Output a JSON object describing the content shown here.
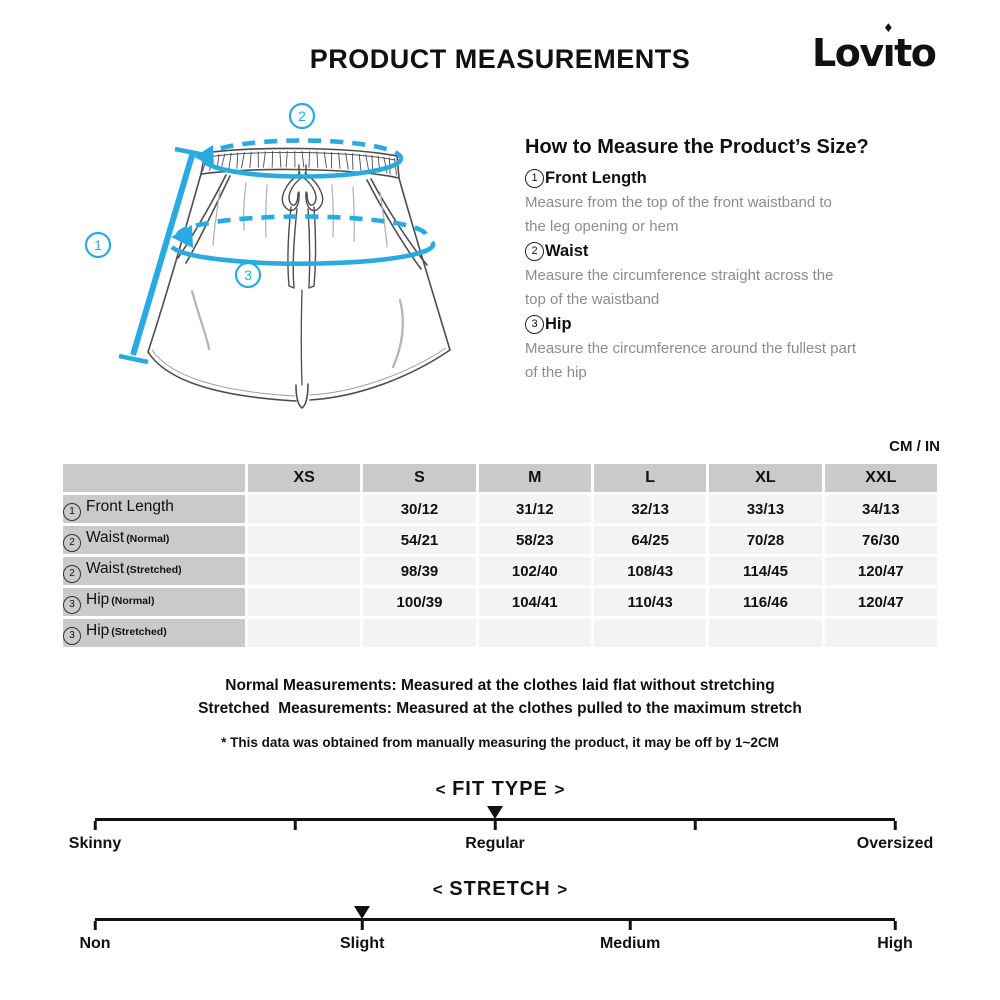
{
  "header": {
    "title": "PRODUCT MEASUREMENTS"
  },
  "brand": {
    "name": "Lovito",
    "pre": "Lov",
    "i_base": "ı",
    "i_dot": "♦",
    "post": "to"
  },
  "diagram": {
    "annotations": {
      "a1": "1",
      "a2": "2",
      "a3": "3"
    }
  },
  "howto": {
    "heading": "How to Measure the Product’s Size?",
    "items": [
      {
        "num": "1",
        "label": "Front Length",
        "desc": "Measure from the top of the front waistband to\nthe leg opening or hem"
      },
      {
        "num": "2",
        "label": "Waist",
        "desc": "Measure the circumference straight across the\ntop of the waistband"
      },
      {
        "num": "3",
        "label": "Hip",
        "desc": "Measure the circumference around the fullest part\nof the hip"
      }
    ]
  },
  "units_label": "CM / IN",
  "table": {
    "columns": [
      "XS",
      "S",
      "M",
      "L",
      "XL",
      "XXL"
    ],
    "rows": [
      {
        "num": "1",
        "label": "Front Length",
        "sub": "",
        "values": [
          "",
          "30/12",
          "31/12",
          "32/13",
          "33/13",
          "34/13"
        ]
      },
      {
        "num": "2",
        "label": "Waist",
        "sub": "(Normal)",
        "values": [
          "",
          "54/21",
          "58/23",
          "64/25",
          "70/28",
          "76/30"
        ]
      },
      {
        "num": "2",
        "label": "Waist",
        "sub": "(Stretched)",
        "values": [
          "",
          "98/39",
          "102/40",
          "108/43",
          "114/45",
          "120/47"
        ]
      },
      {
        "num": "3",
        "label": "Hip",
        "sub": "(Normal)",
        "values": [
          "",
          "100/39",
          "104/41",
          "110/43",
          "116/46",
          "120/47"
        ]
      },
      {
        "num": "3",
        "label": "Hip",
        "sub": "(Stretched)",
        "values": [
          "",
          "",
          "",
          "",
          "",
          ""
        ]
      }
    ]
  },
  "notes": {
    "line1": "Normal Measurements: Measured at the clothes laid flat without stretching",
    "line2": "Stretched  Measurements: Measured at the clothes pulled to the maximum stretch",
    "disclaimer": "* This data was obtained from manually measuring the product, it may be off by 1~2CM"
  },
  "sliders": {
    "bracket_left": "<",
    "bracket_right": ">",
    "fit_type": {
      "title": "FIT TYPE",
      "selected": "Regular",
      "marker_percent": 50,
      "tick_percents": [
        0,
        25,
        50,
        75,
        100
      ],
      "labels": [
        "Skinny",
        "Regular",
        "Oversized"
      ],
      "label_percents": [
        0,
        50,
        100
      ]
    },
    "stretch": {
      "title": "STRETCH",
      "selected": "Slight",
      "marker_percent": 33.4,
      "tick_percents": [
        0,
        33.4,
        66.9,
        100
      ],
      "labels": [
        "Non",
        "Slight",
        "Medium",
        "High"
      ],
      "label_percents": [
        0,
        33.4,
        66.9,
        100
      ]
    }
  },
  "colors": {
    "accent": "#29abe2",
    "table_header_bg": "#cacaca",
    "table_cell_bg": "#f3f3f3",
    "muted_text": "#8c8c8c"
  }
}
